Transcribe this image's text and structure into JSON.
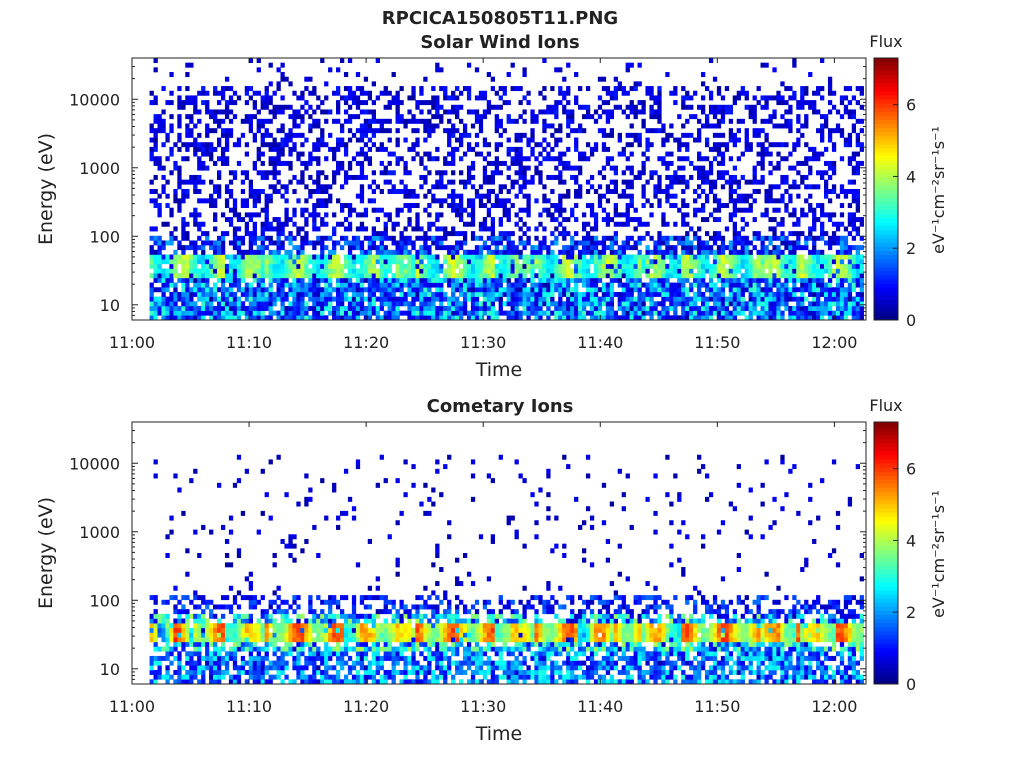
{
  "figure": {
    "title": "RPCICA150805T11.PNG",
    "colors": {
      "background": "#ffffff",
      "axis": "#222222"
    }
  },
  "chart_data": [
    {
      "type": "heatmap",
      "title": "Solar Wind Ions",
      "xlabel": "Time",
      "ylabel": "Energy (eV)",
      "x_range_minutes": [
        0,
        62.7
      ],
      "x_ticks": [
        "11:00",
        "11:10",
        "11:20",
        "11:30",
        "11:40",
        "11:50",
        "12:00"
      ],
      "x_tick_minutes": [
        0,
        10,
        20,
        30,
        40,
        50,
        60
      ],
      "y_scale": "log",
      "y_range": [
        6,
        40000
      ],
      "y_ticks": [
        "10",
        "100",
        "1000",
        "10000"
      ],
      "y_tick_values": [
        10,
        100,
        1000,
        10000
      ],
      "colorbar": {
        "title": "Flux",
        "label": "eV⁻¹cm⁻²sr⁻¹s⁻¹",
        "range": [
          0,
          7.3
        ],
        "ticks": [
          "0",
          "2",
          "4",
          "6"
        ],
        "tick_values": [
          0,
          2,
          4,
          6
        ],
        "colormap": "jet"
      },
      "data_extent_minutes": [
        1.5,
        62.5
      ],
      "band_peaks": [
        {
          "x_minutes": 9.5,
          "energy_eV": 35,
          "log_flux": 5.0
        },
        {
          "x_minutes": 22.5,
          "energy_eV": 35,
          "log_flux": 4.8
        },
        {
          "x_minutes": 32.5,
          "energy_eV": 35,
          "log_flux": 4.8
        },
        {
          "x_minutes": 45.0,
          "energy_eV": 35,
          "log_flux": 4.7
        },
        {
          "x_minutes": 55.0,
          "energy_eV": 35,
          "log_flux": 5.1
        }
      ],
      "grid": false
    },
    {
      "type": "heatmap",
      "title": "Cometary Ions",
      "xlabel": "Time",
      "ylabel": "Energy (eV)",
      "x_range_minutes": [
        0,
        62.7
      ],
      "x_ticks": [
        "11:00",
        "11:10",
        "11:20",
        "11:30",
        "11:40",
        "11:50",
        "12:00"
      ],
      "x_tick_minutes": [
        0,
        10,
        20,
        30,
        40,
        50,
        60
      ],
      "y_scale": "log",
      "y_range": [
        6,
        40000
      ],
      "y_ticks": [
        "10",
        "100",
        "1000",
        "10000"
      ],
      "y_tick_values": [
        10,
        100,
        1000,
        10000
      ],
      "colorbar": {
        "title": "Flux",
        "label": "eV⁻¹cm⁻²sr⁻¹s⁻¹",
        "range": [
          0,
          7.3
        ],
        "ticks": [
          "0",
          "2",
          "4",
          "6"
        ],
        "tick_values": [
          0,
          2,
          4,
          6
        ],
        "colormap": "jet"
      },
      "data_extent_minutes": [
        1.5,
        62.5
      ],
      "band_peaks": [
        {
          "x_minutes": 3.5,
          "energy_eV": 32,
          "log_flux": 6.0
        },
        {
          "x_minutes": 9.5,
          "energy_eV": 32,
          "log_flux": 6.4
        },
        {
          "x_minutes": 19.5,
          "energy_eV": 32,
          "log_flux": 6.6
        },
        {
          "x_minutes": 22.5,
          "energy_eV": 32,
          "log_flux": 6.8
        },
        {
          "x_minutes": 32.5,
          "energy_eV": 32,
          "log_flux": 7.0
        },
        {
          "x_minutes": 39.5,
          "energy_eV": 32,
          "log_flux": 6.6
        },
        {
          "x_minutes": 45.0,
          "energy_eV": 32,
          "log_flux": 6.7
        },
        {
          "x_minutes": 55.0,
          "energy_eV": 32,
          "log_flux": 7.1
        },
        {
          "x_minutes": 58.5,
          "energy_eV": 32,
          "log_flux": 6.8
        }
      ],
      "grid": false
    }
  ]
}
